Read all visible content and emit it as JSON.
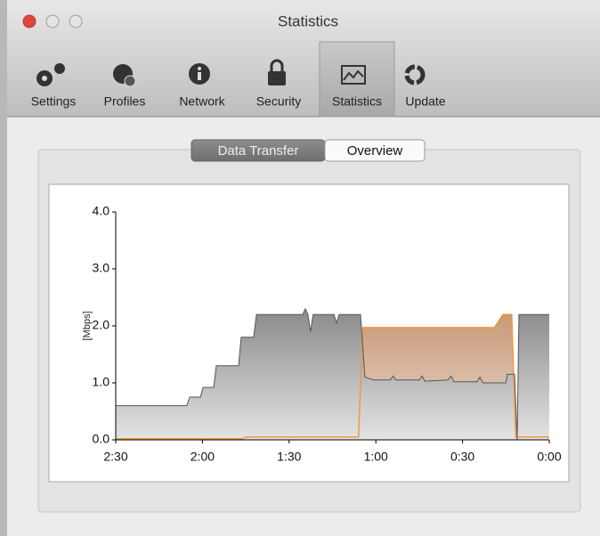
{
  "window": {
    "title": "Statistics"
  },
  "toolbar": {
    "items": [
      "Settings",
      "Profiles",
      "Network",
      "Security",
      "Statistics",
      "Update"
    ],
    "selected": "Statistics"
  },
  "segmented_control": {
    "items": [
      "Data Transfer",
      "Overview"
    ],
    "selected": "Data Transfer"
  },
  "chart_data": {
    "type": "area",
    "ylabel": "[Mbps]",
    "xlim": [
      150,
      0
    ],
    "ylim": [
      0,
      4
    ],
    "xticks": [
      {
        "value": 150,
        "label": "2:30"
      },
      {
        "value": 120,
        "label": "2:00"
      },
      {
        "value": 90,
        "label": "1:30"
      },
      {
        "value": 60,
        "label": "1:00"
      },
      {
        "value": 30,
        "label": "0:30"
      },
      {
        "value": 0,
        "label": "0:00"
      }
    ],
    "yticks": [
      {
        "value": 0,
        "label": "0.0"
      },
      {
        "value": 1,
        "label": "1.0"
      },
      {
        "value": 2,
        "label": "2.0"
      },
      {
        "value": 3,
        "label": "3.0"
      },
      {
        "value": 4,
        "label": "4.0"
      }
    ],
    "series": [
      {
        "color": "#ef9a3c",
        "x": [
          150,
          106,
          105,
          66,
          64.5,
          19,
          16,
          13,
          11.6,
          0
        ],
        "values": [
          0.02,
          0.02,
          0.05,
          0.05,
          1.97,
          1.97,
          2.2,
          2.2,
          0.05,
          0.05
        ]
      },
      {
        "color": "#555555",
        "x": [
          150,
          125.4,
          124.4,
          120.7,
          119.8,
          116.1,
          115.2,
          107.5,
          106.6,
          102.3,
          101.3,
          85.3,
          84.4,
          83.5,
          82.6,
          81.7,
          74.5,
          73.6,
          72.7,
          65.3,
          63.8,
          60.7,
          55,
          54,
          53,
          45,
          44,
          43,
          35,
          34,
          33,
          25,
          24,
          23,
          15,
          14.5,
          12,
          11.1,
          10.5,
          0
        ],
        "values": [
          0.6,
          0.6,
          0.75,
          0.75,
          0.92,
          0.92,
          1.3,
          1.3,
          1.8,
          1.8,
          2.2,
          2.2,
          2.3,
          2.2,
          1.9,
          2.2,
          2.2,
          2.05,
          2.2,
          2.2,
          1.1,
          1.05,
          1.05,
          1.12,
          1.05,
          1.05,
          1.12,
          1.03,
          1.05,
          1.12,
          1.02,
          1.02,
          1.1,
          1.0,
          1.0,
          1.15,
          1.15,
          0,
          2.2,
          2.2
        ]
      }
    ]
  }
}
